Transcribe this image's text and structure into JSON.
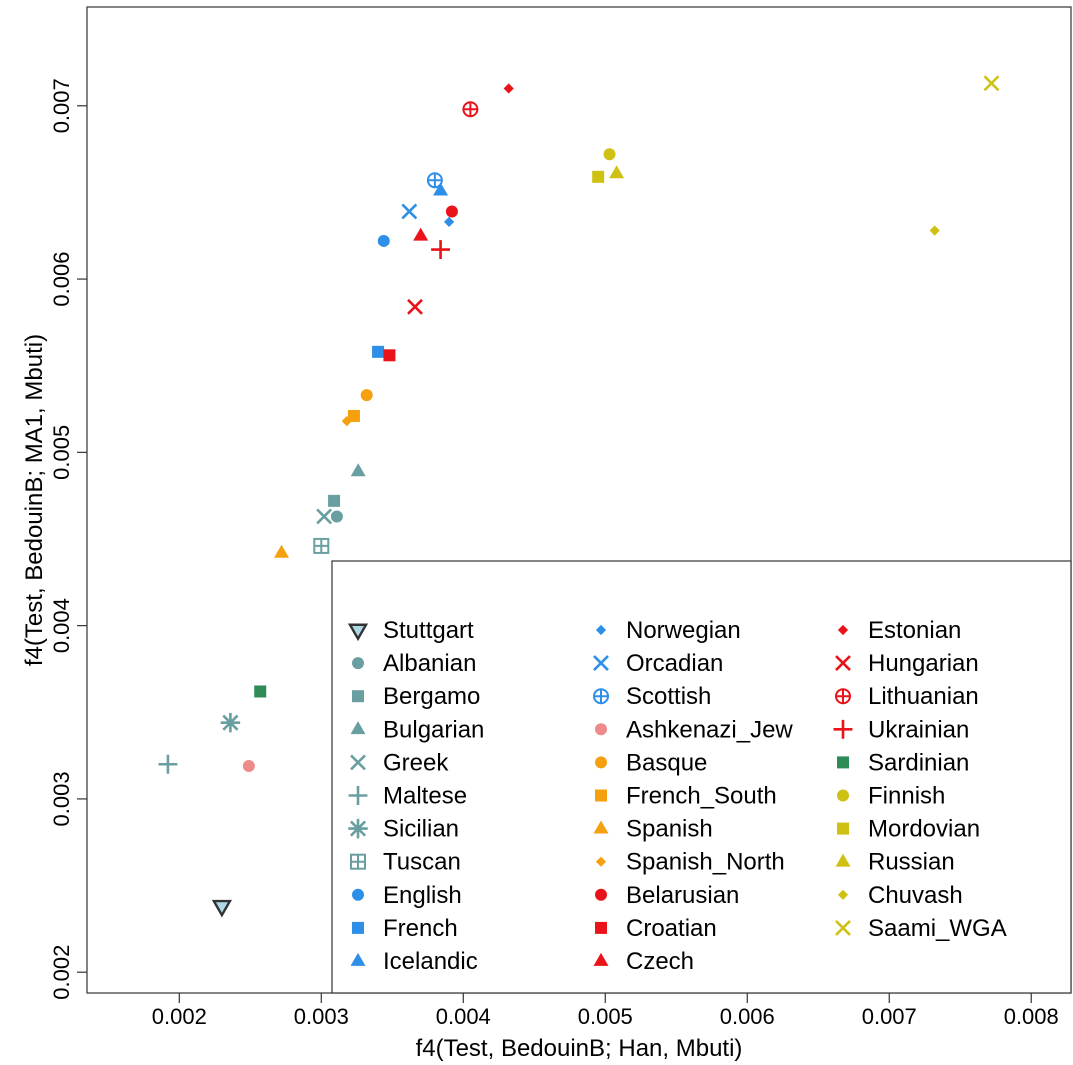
{
  "chart_data": {
    "type": "scatter",
    "xlabel": "f4(Test, BedouinB; Han, Mbuti)",
    "ylabel": "f4(Test, BedouinB; MA1, Mbuti)",
    "xlim": [
      0.00135,
      0.00828
    ],
    "ylim": [
      0.00188,
      0.00757
    ],
    "xticks": [
      0.002,
      0.003,
      0.004,
      0.005,
      0.006,
      0.007,
      0.008
    ],
    "xtick_labels": [
      "0.002",
      "0.003",
      "0.004",
      "0.005",
      "0.006",
      "0.007",
      "0.008"
    ],
    "yticks": [
      0.002,
      0.003,
      0.004,
      0.005,
      0.006,
      0.007
    ],
    "ytick_labels": [
      "0.002",
      "0.003",
      "0.004",
      "0.005",
      "0.006",
      "0.007"
    ],
    "grid": false,
    "legend_position": "bottom-right",
    "colors": {
      "teal": "#6a9fa2",
      "blue": "#2e8fe8",
      "pink": "#ee8a8a",
      "orange": "#f5a00f",
      "red": "#e8141a",
      "green": "#2e8b57",
      "olive": "#cfc113",
      "stuttgart_fill": "#add8e6"
    },
    "points": [
      {
        "label": "Stuttgart",
        "x": 0.0023,
        "y": 0.00238,
        "marker": "triangle-down",
        "color": "#333333",
        "fill": "#add8e6"
      },
      {
        "label": "Albanian",
        "x": 0.00311,
        "y": 0.00463,
        "marker": "circle",
        "color": "#6a9fa2"
      },
      {
        "label": "Bergamo",
        "x": 0.00309,
        "y": 0.00472,
        "marker": "square",
        "color": "#6a9fa2"
      },
      {
        "label": "Bulgarian",
        "x": 0.00326,
        "y": 0.00489,
        "marker": "triangle",
        "color": "#6a9fa2"
      },
      {
        "label": "Greek",
        "x": 0.00302,
        "y": 0.00463,
        "marker": "x",
        "color": "#6a9fa2"
      },
      {
        "label": "Maltese",
        "x": 0.00192,
        "y": 0.0032,
        "marker": "plus",
        "color": "#6a9fa2"
      },
      {
        "label": "Sicilian",
        "x": 0.00236,
        "y": 0.00344,
        "marker": "asterisk",
        "color": "#6a9fa2"
      },
      {
        "label": "Tuscan",
        "x": 0.003,
        "y": 0.00446,
        "marker": "square-plus",
        "color": "#6a9fa2"
      },
      {
        "label": "English",
        "x": 0.00344,
        "y": 0.00622,
        "marker": "circle",
        "color": "#2e8fe8"
      },
      {
        "label": "French",
        "x": 0.0034,
        "y": 0.00558,
        "marker": "square",
        "color": "#2e8fe8"
      },
      {
        "label": "Icelandic",
        "x": 0.00384,
        "y": 0.00651,
        "marker": "triangle",
        "color": "#2e8fe8"
      },
      {
        "label": "Norwegian",
        "x": 0.0039,
        "y": 0.00633,
        "marker": "diamond",
        "color": "#2e8fe8"
      },
      {
        "label": "Orcadian",
        "x": 0.00362,
        "y": 0.00639,
        "marker": "x",
        "color": "#2e8fe8"
      },
      {
        "label": "Scottish",
        "x": 0.0038,
        "y": 0.00657,
        "marker": "circle-plus",
        "color": "#2e8fe8"
      },
      {
        "label": "Ashkenazi_Jew",
        "x": 0.00249,
        "y": 0.00319,
        "marker": "circle",
        "color": "#ee8a8a"
      },
      {
        "label": "Basque",
        "x": 0.00332,
        "y": 0.00533,
        "marker": "circle",
        "color": "#f5a00f"
      },
      {
        "label": "French_South",
        "x": 0.00323,
        "y": 0.00521,
        "marker": "square",
        "color": "#f5a00f"
      },
      {
        "label": "Spanish",
        "x": 0.00272,
        "y": 0.00442,
        "marker": "triangle",
        "color": "#f5a00f"
      },
      {
        "label": "Spanish_North",
        "x": 0.00318,
        "y": 0.00518,
        "marker": "diamond",
        "color": "#f5a00f"
      },
      {
        "label": "Belarusian",
        "x": 0.00392,
        "y": 0.00639,
        "marker": "circle",
        "color": "#e8141a"
      },
      {
        "label": "Croatian",
        "x": 0.00348,
        "y": 0.00556,
        "marker": "square",
        "color": "#e8141a"
      },
      {
        "label": "Czech",
        "x": 0.0037,
        "y": 0.00625,
        "marker": "triangle",
        "color": "#e8141a"
      },
      {
        "label": "Estonian",
        "x": 0.00432,
        "y": 0.0071,
        "marker": "diamond",
        "color": "#e8141a"
      },
      {
        "label": "Hungarian",
        "x": 0.00366,
        "y": 0.00584,
        "marker": "x",
        "color": "#e8141a"
      },
      {
        "label": "Lithuanian",
        "x": 0.00405,
        "y": 0.00698,
        "marker": "circle-plus",
        "color": "#e8141a"
      },
      {
        "label": "Ukrainian",
        "x": 0.00384,
        "y": 0.00617,
        "marker": "plus",
        "color": "#e8141a"
      },
      {
        "label": "Sardinian",
        "x": 0.00257,
        "y": 0.00362,
        "marker": "square",
        "color": "#2e8b57"
      },
      {
        "label": "Finnish",
        "x": 0.00503,
        "y": 0.00672,
        "marker": "circle",
        "color": "#cfc113"
      },
      {
        "label": "Mordovian",
        "x": 0.00495,
        "y": 0.00659,
        "marker": "square",
        "color": "#cfc113"
      },
      {
        "label": "Russian",
        "x": 0.00508,
        "y": 0.00661,
        "marker": "triangle",
        "color": "#cfc113"
      },
      {
        "label": "Chuvash",
        "x": 0.00732,
        "y": 0.00628,
        "marker": "diamond",
        "color": "#cfc113"
      },
      {
        "label": "Saami_WGA",
        "x": 0.00772,
        "y": 0.00713,
        "marker": "x",
        "color": "#cfc113"
      }
    ],
    "legend_columns": [
      [
        "Stuttgart",
        "Albanian",
        "Bergamo",
        "Bulgarian",
        "Greek",
        "Maltese",
        "Sicilian",
        "Tuscan",
        "English",
        "French",
        "Icelandic"
      ],
      [
        "Norwegian",
        "Orcadian",
        "Scottish",
        "Ashkenazi_Jew",
        "Basque",
        "French_South",
        "Spanish",
        "Spanish_North",
        "Belarusian",
        "Croatian",
        "Czech"
      ],
      [
        "Estonian",
        "Hungarian",
        "Lithuanian",
        "Ukrainian",
        "Sardinian",
        "Finnish",
        "Mordovian",
        "Russian",
        "Chuvash",
        "Saami_WGA"
      ]
    ]
  }
}
